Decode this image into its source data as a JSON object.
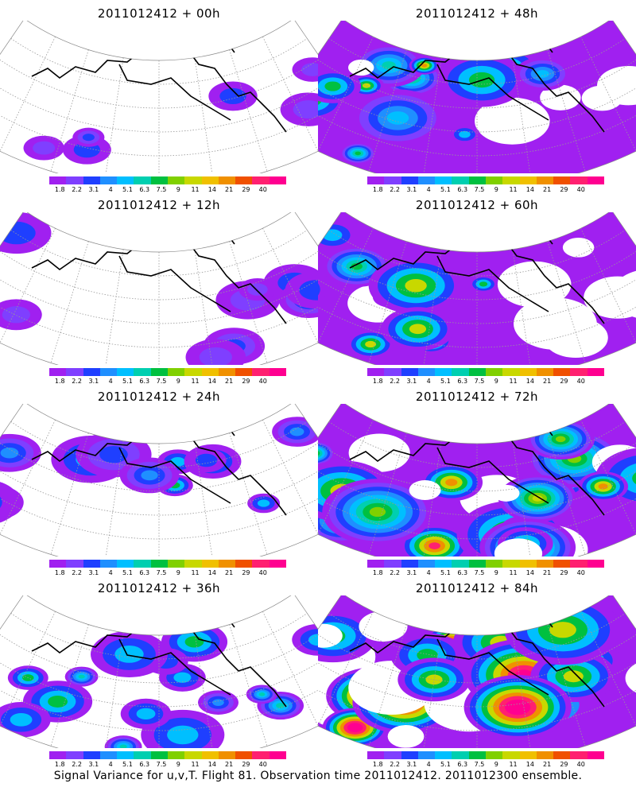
{
  "panels": [
    {
      "title": "2011012412 + 00h",
      "intensity": 0
    },
    {
      "title": "2011012412 + 48h",
      "intensity": 4
    },
    {
      "title": "2011012412 + 12h",
      "intensity": 1
    },
    {
      "title": "2011012412 + 60h",
      "intensity": 5
    },
    {
      "title": "2011012412 + 24h",
      "intensity": 2
    },
    {
      "title": "2011012412 + 72h",
      "intensity": 6
    },
    {
      "title": "2011012412 + 36h",
      "intensity": 3
    },
    {
      "title": "2011012412 + 84h",
      "intensity": 7
    }
  ],
  "colorbar": {
    "colors": [
      "#a020f0",
      "#7f3fff",
      "#1f3fff",
      "#1f8fff",
      "#00bfff",
      "#00cfb0",
      "#00c040",
      "#80d000",
      "#c8d800",
      "#f0c000",
      "#f09000",
      "#f05000",
      "#ff2070",
      "#ff0090"
    ],
    "labels": [
      "1.8",
      "2.2",
      "3.1",
      "4",
      "5.1",
      "6.3",
      "7.5",
      "9",
      "11",
      "14",
      "21",
      "29",
      "40"
    ]
  },
  "caption": "Signal Variance for u,v,T. Flight 81. Observation time 2011012412. 2011012300 ensemble."
}
